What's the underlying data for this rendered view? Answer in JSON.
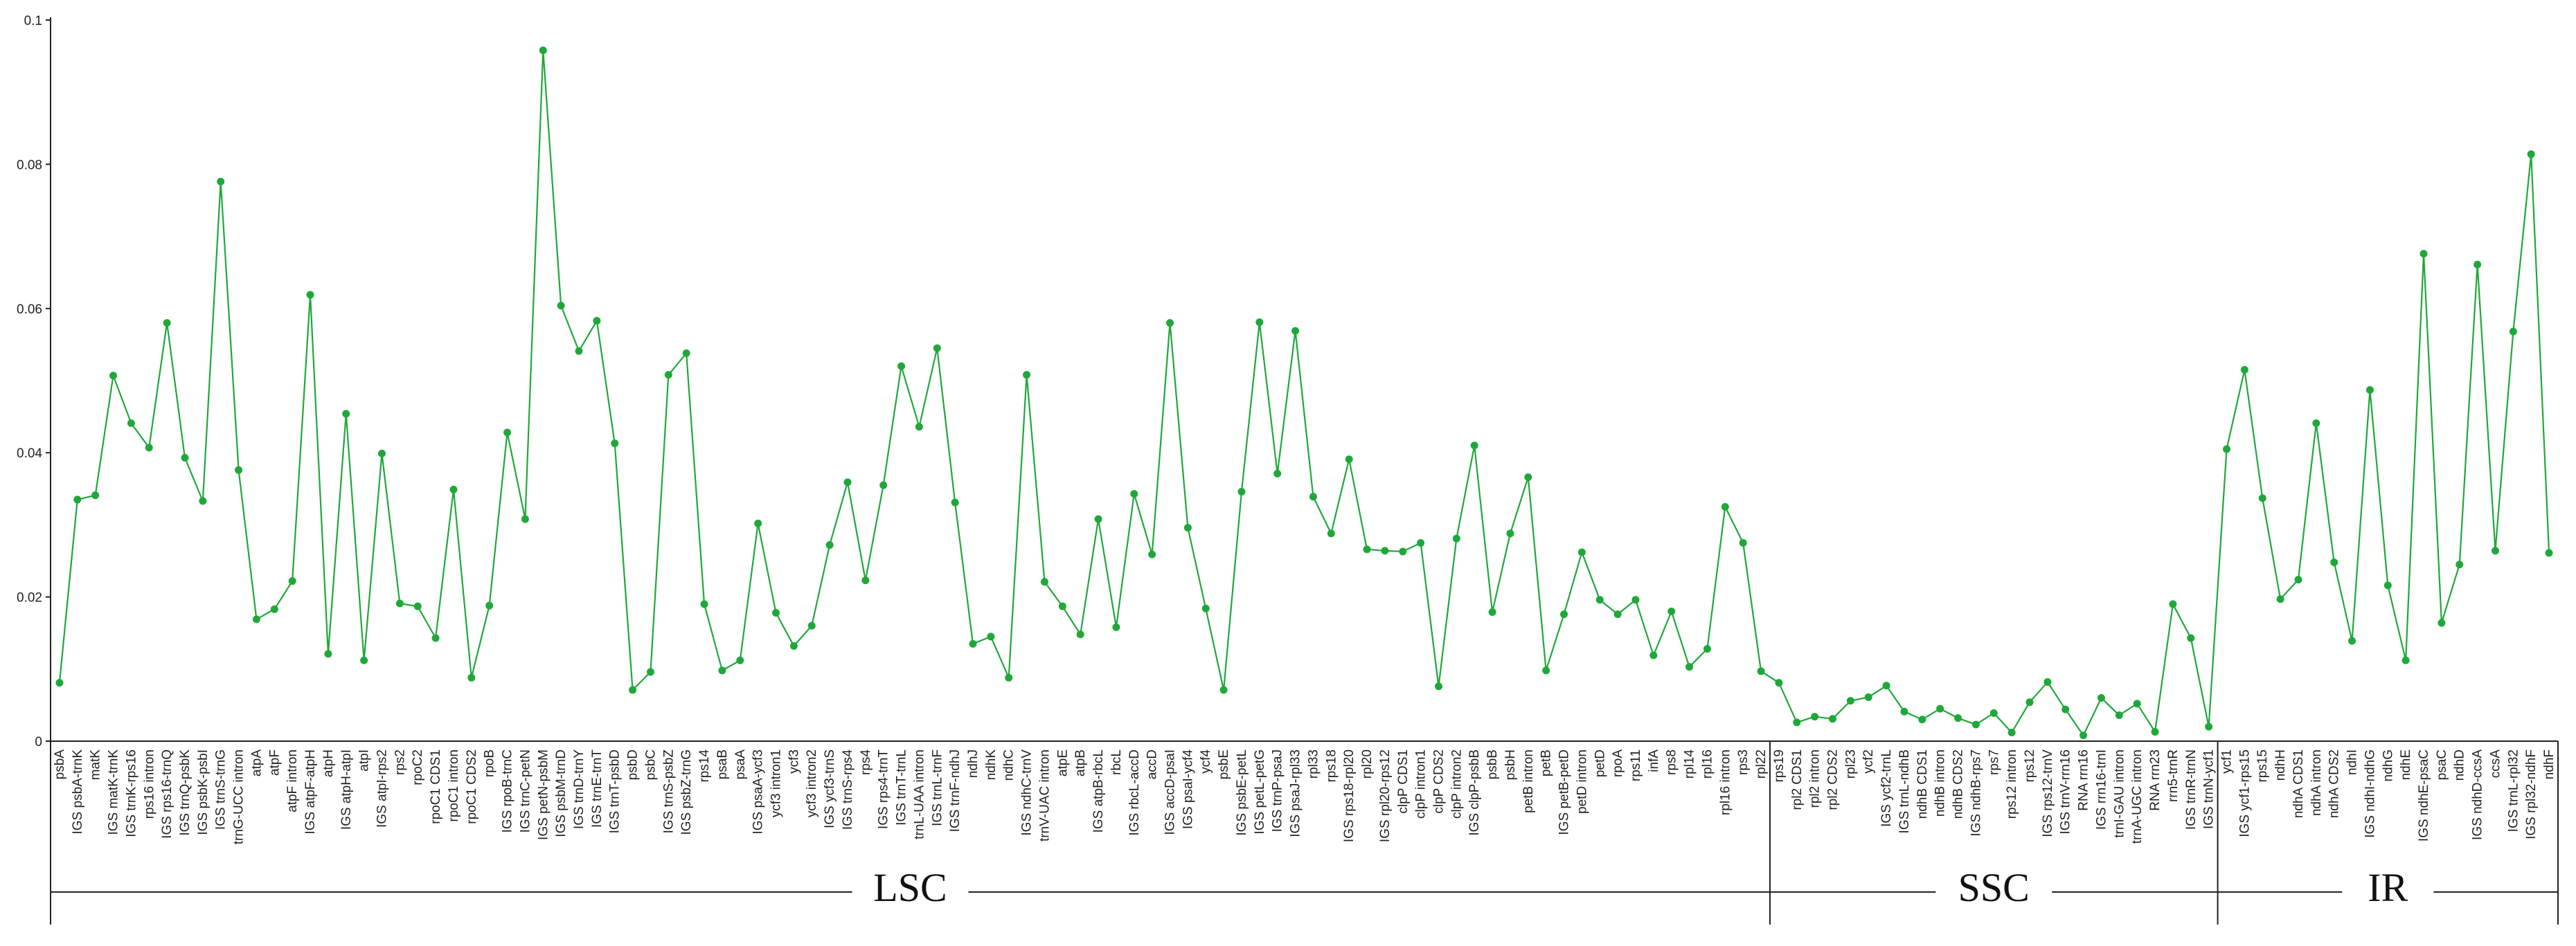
{
  "chart_data": {
    "type": "line",
    "title": "",
    "xlabel": "",
    "ylabel": "",
    "ylim": [
      0,
      0.1
    ],
    "yticks": [
      "0",
      "0.02",
      "0.04",
      "0.06",
      "0.08",
      "0.1"
    ],
    "grid": false,
    "legend": "none",
    "series_color": "#1fa83a",
    "categories": [
      "psbA",
      "IGS psbA-trnK",
      "matK",
      "IGS matK-trnK",
      "IGS trnK-rps16",
      "rps16 intron",
      "IGS rps16-trnQ",
      "IGS trnQ-psbK",
      "IGS psbK-psbI",
      "IGS trnS-trnG",
      "trnG-UCC intron",
      "atpA",
      "atpF",
      "atpF intron",
      "IGS atpF-atpH",
      "atpH",
      "IGS atpH-atpI",
      "atpI",
      "IGS atpI-rps2",
      "rps2",
      "rpoC2",
      "rpoC1 CDS1",
      "rpoC1 intron",
      "rpoC1 CDS2",
      "rpoB",
      "IGS rpoB-trnC",
      "IGS trnC-petN",
      "IGS petN-psbM",
      "IGS psbM-trnD",
      "IGS trnD-trnY",
      "IGS trnE-trnT",
      "IGS trnT-psbD",
      "psbD",
      "psbC",
      "IGS trnS-psbZ",
      "IGS psbZ-trnG",
      "rps14",
      "psaB",
      "psaA",
      "IGS psaA-ycf3",
      "ycf3 intron1",
      "ycf3",
      "ycf3 intron2",
      "IGS ycf3-trnS",
      "IGS trnS-rps4",
      "rps4",
      "IGS rps4-trnT",
      "IGS trnT-trnL",
      "trnL-UAA intron",
      "IGS trnL-trnF",
      "IGS trnF-ndhJ",
      "ndhJ",
      "ndhK",
      "ndhC",
      "IGS ndhC-trnV",
      "trnV-UAC intron",
      "atpE",
      "atpB",
      "IGS atpB-rbcL",
      "rbcL",
      "IGS rbcL-accD",
      "accD",
      "IGS accD-psaI",
      "IGS psaI-ycf4",
      "ycf4",
      "psbE",
      "IGS psbE-petL",
      "IGS petL-petG",
      "IGS trnP-psaJ",
      "IGS psaJ-rpl33",
      "rpl33",
      "rps18",
      "IGS rps18-rpl20",
      "rpl20",
      "IGS rpl20-rps12",
      "clpP CDS1",
      "clpP intron1",
      "clpP CDS2",
      "clpP intron2",
      "IGS clpP-psbB",
      "psbB",
      "psbH",
      "petB intron",
      "petB",
      "IGS petB-petD",
      "petD intron",
      "petD",
      "rpoA",
      "rps11",
      "infA",
      "rps8",
      "rpl14",
      "rpl16",
      "rpl16 intron",
      "rps3",
      "rpl22",
      "rps19",
      "rpl2 CDS1",
      "rpl2 intron",
      "rpl2 CDS2",
      "rpl23",
      "ycf2",
      "IGS ycf2-trnL",
      "IGS trnL-ndhB",
      "ndhB CDS1",
      "ndhB intron",
      "ndhB CDS2",
      "IGS ndhB-rps7",
      "rps7",
      "rps12 intron",
      "rps12",
      "IGS rps12-trnV",
      "IGS trnV-rrn16",
      "RNA rrn16",
      "IGS rrn16-trnI",
      "trnI-GAU intron",
      "trnA-UGC intron",
      "RNA rrn23",
      "rrn5-trnR",
      "IGS trnR-trnN",
      "IGS trnN-ycf1",
      "ycf1",
      "IGS ycf1-rps15",
      "rps15",
      "ndhH",
      "ndhA CDS1",
      "ndhA intron",
      "ndhA CDS2",
      "ndhI",
      "IGS ndhI-ndhG",
      "ndhG",
      "ndhE",
      "IGS ndhE-psaC",
      "psaC",
      "ndhD",
      "IGS ndhD-ccsA",
      "ccsA",
      "IGS trnL-rpl32",
      "IGS rpl32-ndhF",
      "ndhF"
    ],
    "values": [
      0.0081,
      0.0335,
      0.0341,
      0.0507,
      0.0441,
      0.0407,
      0.058,
      0.0393,
      0.0333,
      0.0776,
      0.0376,
      0.0169,
      0.0183,
      0.0222,
      0.0619,
      0.0121,
      0.0454,
      0.0112,
      0.0399,
      0.0191,
      0.0187,
      0.0143,
      0.0349,
      0.0088,
      0.0188,
      0.0428,
      0.0308,
      0.0958,
      0.0604,
      0.0541,
      0.0583,
      0.0413,
      0.0071,
      0.0096,
      0.0508,
      0.0538,
      0.019,
      0.0098,
      0.0112,
      0.0302,
      0.0178,
      0.0132,
      0.016,
      0.0272,
      0.0359,
      0.0223,
      0.0355,
      0.052,
      0.0436,
      0.0545,
      0.0331,
      0.0135,
      0.0145,
      0.0088,
      0.0508,
      0.0221,
      0.0187,
      0.0148,
      0.0308,
      0.0158,
      0.0343,
      0.0259,
      0.058,
      0.0296,
      0.0184,
      0.0071,
      0.0346,
      0.0581,
      0.0371,
      0.0569,
      0.0339,
      0.0288,
      0.0391,
      0.0266,
      0.0264,
      0.0263,
      0.0275,
      0.0076,
      0.0281,
      0.041,
      0.0179,
      0.0288,
      0.0366,
      0.0098,
      0.0176,
      0.0262,
      0.0196,
      0.0176,
      0.0196,
      0.0119,
      0.018,
      0.0103,
      0.0128,
      0.0325,
      0.0275,
      0.0097,
      0.0081,
      0.0026,
      0.0034,
      0.0031,
      0.0056,
      0.0061,
      0.0077,
      0.0041,
      0.003,
      0.0045,
      0.0032,
      0.0023,
      0.0039,
      0.0012,
      0.0054,
      0.0082,
      0.0044,
      0.0008,
      0.006,
      0.0036,
      0.0052,
      0.0013,
      0.019,
      0.0143,
      0.002,
      0.0405,
      0.0515,
      0.0337,
      0.0197,
      0.0224,
      0.0441,
      0.0248,
      0.0139,
      0.0487,
      0.0216,
      0.0112,
      0.0676,
      0.0164,
      0.0245,
      0.0661,
      0.0264,
      0.0568,
      0.0814,
      0.0261
    ],
    "regions": [
      {
        "label": "LSC",
        "from": 0,
        "to": 95
      },
      {
        "label": "SSC",
        "from": 96,
        "to": 120
      },
      {
        "label": "IR",
        "from": 121,
        "to": 139
      }
    ]
  }
}
